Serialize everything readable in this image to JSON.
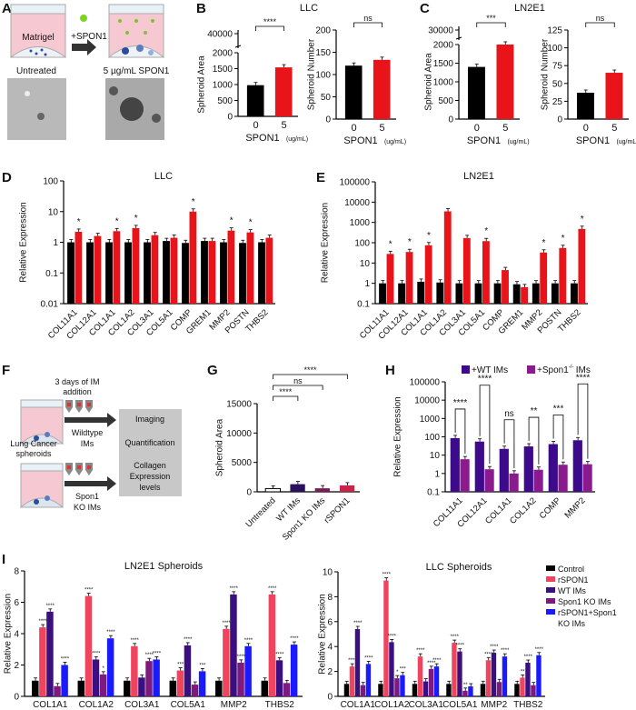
{
  "panel_labels": [
    "A",
    "B",
    "C",
    "D",
    "E",
    "F",
    "G",
    "H",
    "I"
  ],
  "panel_a": {
    "matrigel": "Matrigel",
    "treatment": "+SPON1",
    "untreated": "Untreated",
    "treated": "5 µg/mL SPON1"
  },
  "panel_f": {
    "duration_1": "3 days of IM",
    "duration_2": "addition",
    "spheroids_1": "Lung Cancer",
    "spheroids_2": "spheroids",
    "wildtype_1": "Wildtype",
    "wildtype_2": "IMs",
    "ko_1": "Spon1",
    "ko_2": "KO IMs",
    "readouts": [
      "Imaging",
      "Quantification",
      "Collagen",
      "Expression",
      "levels"
    ]
  },
  "colors": {
    "control": "#000000",
    "spon1": "#e8141a",
    "wt_ims": "#3d0a8c",
    "ko_ims": "#8b1a8f",
    "i_rspon1": "#f0445e",
    "i_wt": "#3a0f80",
    "i_ko": "#7d1a7d",
    "i_combo": "#1a1aff",
    "g_untreated": "#ffffff",
    "g_wt": "#2a0f5e",
    "g_ko": "#7a1a5a",
    "g_rspon1": "#c8244a"
  },
  "chart_data": [
    {
      "id": "B1",
      "type": "bar",
      "title": "LLC",
      "ylabel": "Spheroid  Area",
      "xlabel": "SPON1",
      "xunit": "(ug/mL)",
      "categories": [
        "0",
        "5"
      ],
      "series": [
        {
          "values": [
            980,
            1540
          ]
        }
      ],
      "bar_colors": [
        "#000000",
        "#e8141a"
      ],
      "scale": "linear",
      "ylim": [
        0,
        2000
      ],
      "yticks": [
        0,
        500,
        1000,
        1500,
        2000
      ],
      "axis_break": {
        "upper_ticks": [
          40000
        ]
      },
      "comparisons": [
        {
          "groups": [
            0,
            1
          ],
          "label": "****"
        }
      ]
    },
    {
      "id": "B2",
      "type": "bar",
      "title": "",
      "ylabel": "Spheroid  Number",
      "xlabel": "SPON1",
      "xunit": "(ug/mL)",
      "categories": [
        "0",
        "5"
      ],
      "series": [
        {
          "values": [
            120,
            133
          ]
        }
      ],
      "bar_colors": [
        "#000000",
        "#e8141a"
      ],
      "scale": "linear",
      "ylim": [
        0,
        200
      ],
      "yticks": [
        0,
        50,
        100,
        150,
        200
      ],
      "comparisons": [
        {
          "groups": [
            0,
            1
          ],
          "label": "ns"
        }
      ]
    },
    {
      "id": "C1",
      "type": "bar",
      "title": "LN2E1",
      "ylabel": "Spheroid Area",
      "xlabel": "SPON1",
      "xunit": "(ug/mL)",
      "categories": [
        "0",
        "5"
      ],
      "series": [
        {
          "values": [
            1400,
            2000
          ]
        }
      ],
      "bar_colors": [
        "#000000",
        "#e8141a"
      ],
      "scale": "linear",
      "ylim": [
        0,
        2000
      ],
      "yticks": [
        0,
        500,
        1000,
        1500,
        2000
      ],
      "axis_break": {
        "upper_ticks": [
          30000
        ]
      },
      "comparisons": [
        {
          "groups": [
            0,
            1
          ],
          "label": "***"
        }
      ]
    },
    {
      "id": "C2",
      "type": "bar",
      "title": "",
      "ylabel": "Spheroid Number",
      "xlabel": "SPON1",
      "xunit": "(ug/mL)",
      "categories": [
        "0",
        "5"
      ],
      "series": [
        {
          "values": [
            37,
            65
          ]
        }
      ],
      "bar_colors": [
        "#000000",
        "#e8141a"
      ],
      "scale": "linear",
      "ylim": [
        0,
        125
      ],
      "yticks": [
        0,
        25,
        50,
        75,
        100,
        125
      ],
      "comparisons": [
        {
          "groups": [
            0,
            1
          ],
          "label": "ns"
        }
      ]
    },
    {
      "id": "D",
      "type": "bar",
      "title": "LLC",
      "ylabel": "Relative Expression",
      "categories": [
        "COL11A1",
        "COL12A1",
        "COL1A1",
        "COL1A2",
        "COL3A1",
        "COL5A1",
        "COMP",
        "GREM1",
        "MMP2",
        "POSTN",
        "THBS2"
      ],
      "series": [
        {
          "color": "#000000",
          "values": [
            1.0,
            1.0,
            1.0,
            1.0,
            1.0,
            1.1,
            0.95,
            1.1,
            1.0,
            0.95,
            1.0
          ]
        },
        {
          "color": "#e8141a",
          "values": [
            2.2,
            1.6,
            2.3,
            2.9,
            1.7,
            1.4,
            10,
            1.1,
            2.4,
            2.1,
            1.4
          ],
          "sig": [
            "*",
            "",
            "*",
            "*",
            "",
            "",
            "*",
            "",
            "*",
            "*",
            ""
          ]
        }
      ],
      "scale": "log",
      "ylim": [
        0.01,
        100
      ],
      "yticks": [
        0.01,
        0.1,
        1,
        10,
        100
      ],
      "ytick_labels": [
        "0.01",
        "0.1",
        "1",
        "10",
        "100"
      ]
    },
    {
      "id": "E",
      "type": "bar",
      "title": "LN2E1",
      "ylabel": "Relative Expression",
      "categories": [
        "COL11A1",
        "COL12A1",
        "COL1A1",
        "COL1A2",
        "COL3A1",
        "COL5A1",
        "COMP",
        "GREM1",
        "MMP2",
        "POSTN",
        "THBS2"
      ],
      "series": [
        {
          "color": "#000000",
          "values": [
            1,
            1,
            1.2,
            1.1,
            1,
            1,
            1,
            0.9,
            1,
            1,
            1
          ]
        },
        {
          "color": "#e8141a",
          "values": [
            28,
            35,
            75,
            3500,
            170,
            120,
            4.5,
            0.65,
            33,
            55,
            480
          ],
          "sig": [
            "*",
            "*",
            "*",
            "",
            "",
            "*",
            "",
            "",
            "*",
            "*",
            "*"
          ]
        }
      ],
      "scale": "log",
      "ylim": [
        0.1,
        100000
      ],
      "yticks": [
        0.1,
        1,
        10,
        100,
        1000,
        10000,
        100000
      ],
      "ytick_labels": [
        "0.1",
        "1",
        "10",
        "100",
        "1000",
        "10000",
        "100000"
      ]
    },
    {
      "id": "G",
      "type": "bar",
      "title": "",
      "ylabel": "Spheroid Area",
      "categories": [
        "Untreated",
        "WT IMs",
        "Spon1 KO IMs",
        "rSPON1"
      ],
      "series": [
        {
          "values": [
            550,
            1300,
            600,
            1100
          ]
        }
      ],
      "bar_colors": [
        "#ffffff",
        "#2a0f5e",
        "#7a1a5a",
        "#c8244a"
      ],
      "scale": "linear",
      "ylim": [
        0,
        15000
      ],
      "yticks": [
        0,
        5000,
        10000,
        15000
      ],
      "comparisons": [
        {
          "groups": [
            0,
            1
          ],
          "label": "****"
        },
        {
          "groups": [
            0,
            2
          ],
          "label": "ns"
        },
        {
          "groups": [
            0,
            3
          ],
          "label": "****"
        }
      ]
    },
    {
      "id": "H",
      "type": "bar",
      "title": "",
      "ylabel": "Relative Expression",
      "categories": [
        "COL11A1",
        "COL12A1",
        "COL1A1",
        "COL1A2",
        "COMP",
        "MMP2"
      ],
      "series": [
        {
          "name": "+WT IMs",
          "color": "#3d0a8c",
          "values": [
            85,
            55,
            22,
            30,
            40,
            65
          ]
        },
        {
          "name": "+Spon1",
          "name_sup": "-/-",
          "name_tail": " IMs",
          "color": "#8b1a8f",
          "values": [
            6,
            1.7,
            1.0,
            1.6,
            3,
            3.2
          ]
        }
      ],
      "pair_sig": [
        "****",
        "****",
        "ns",
        "**",
        "***",
        "****"
      ],
      "scale": "log",
      "ylim": [
        0.1,
        100000
      ],
      "yticks": [
        0.1,
        1,
        10,
        100,
        1000,
        10000,
        100000
      ],
      "ytick_labels": [
        "0.1",
        "1",
        "10",
        "100",
        "1000",
        "10000",
        "100000"
      ],
      "legend": "top"
    },
    {
      "id": "I1",
      "type": "bar",
      "title": "LN2E1 Spheroids",
      "ylabel": "Relative Expression",
      "categories": [
        "COL1A1",
        "COL1A2",
        "COL3A1",
        "COL5A1",
        "MMP2",
        "THBS2"
      ],
      "series": [
        {
          "name": "Control",
          "color": "#000000",
          "values": [
            1,
            1,
            1,
            1,
            1,
            1
          ],
          "sig": [
            "",
            "",
            "",
            "",
            "",
            ""
          ]
        },
        {
          "name": "rSPON1",
          "color": "#f0445e",
          "values": [
            4.4,
            6.4,
            3.2,
            1.65,
            4.3,
            6.5
          ],
          "sig": [
            "****",
            "****",
            "****",
            "***",
            "****",
            "****"
          ]
        },
        {
          "name": "WT IMs",
          "color": "#3a0f80",
          "values": [
            5.4,
            2.35,
            1.2,
            3.25,
            6.5,
            2.3
          ],
          "sig": [
            "****",
            "****",
            "",
            "****",
            "****",
            "****"
          ]
        },
        {
          "name": "Spon1 KO IMs",
          "color": "#7d1a7d",
          "values": [
            0.65,
            1.4,
            2.25,
            0.75,
            2.15,
            0.85
          ],
          "sig": [
            "",
            "*",
            "****",
            "",
            "****",
            ""
          ]
        },
        {
          "name": "rSPON1+Spon1 KO IMs",
          "color": "#1a1aff",
          "values": [
            2.0,
            3.7,
            2.35,
            1.6,
            3.2,
            3.3
          ],
          "sig": [
            "****",
            "****",
            "****",
            "***",
            "****",
            "****"
          ]
        }
      ],
      "scale": "linear",
      "ylim": [
        0,
        8
      ],
      "yticks": [
        0,
        2,
        4,
        6,
        8
      ]
    },
    {
      "id": "I2",
      "type": "bar",
      "title": "LLC Spheroids",
      "ylabel": "Relative Expression",
      "categories": [
        "COL1A1",
        "COL1A2",
        "COL3A1",
        "COL5A1",
        "MMP2",
        "THBS2"
      ],
      "series": [
        {
          "name": "Control",
          "color": "#000000",
          "values": [
            1,
            1,
            1,
            1,
            1,
            1
          ],
          "sig": [
            "",
            "",
            "",
            "",
            "",
            ""
          ]
        },
        {
          "name": "rSPON1",
          "color": "#f0445e",
          "values": [
            2.4,
            9.3,
            3.2,
            4.3,
            2.9,
            1.5
          ],
          "sig": [
            "****",
            "****",
            "****",
            "****",
            "****",
            "**"
          ]
        },
        {
          "name": "WT IMs",
          "color": "#3a0f80",
          "values": [
            5.4,
            4.35,
            1.2,
            3.6,
            3.5,
            2.7
          ],
          "sig": [
            "****",
            "****",
            "",
            "****",
            "****",
            "****"
          ]
        },
        {
          "name": "Spon1 KO IMs",
          "color": "#7d1a7d",
          "values": [
            0.9,
            1.45,
            2.2,
            0.45,
            1.15,
            0.9
          ],
          "sig": [
            "",
            "*",
            "****",
            "**",
            "",
            ""
          ]
        },
        {
          "name": "rSPON1+Spon1 KO IMs",
          "color": "#1a1aff",
          "values": [
            2.6,
            1.7,
            2.4,
            0.8,
            3.2,
            3.3
          ],
          "sig": [
            "****",
            "***",
            "****",
            "",
            "****",
            "****"
          ]
        }
      ],
      "scale": "linear",
      "ylim": [
        0,
        10
      ],
      "yticks": [
        0,
        2,
        4,
        6,
        8,
        10
      ],
      "legend": "top-right",
      "legend_lines": [
        "Control",
        "rSPON1",
        "WT IMs",
        "Spon1 KO IMs",
        "rSPON1+Spon1",
        "KO IMs"
      ]
    }
  ]
}
